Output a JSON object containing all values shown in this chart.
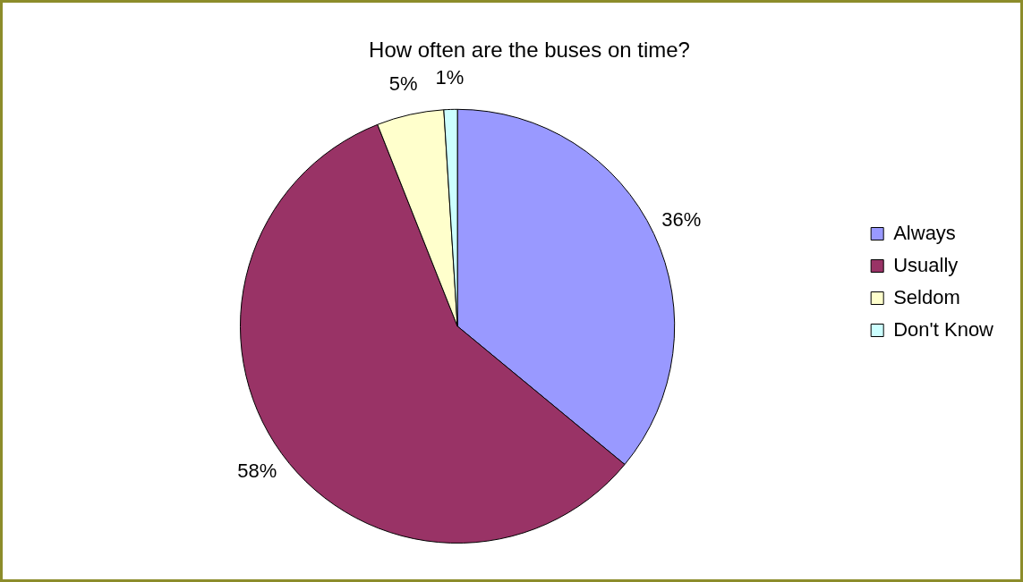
{
  "chart_data": {
    "type": "pie",
    "title": "How often are the buses on time?",
    "categories": [
      "Always",
      "Usually",
      "Seldom",
      "Don't Know"
    ],
    "values": [
      36,
      58,
      5,
      1
    ],
    "value_labels": [
      "36%",
      "58%",
      "5%",
      "1%"
    ],
    "colors": [
      "#9999ff",
      "#993366",
      "#ffffcc",
      "#ccffff"
    ],
    "legend": "right"
  }
}
